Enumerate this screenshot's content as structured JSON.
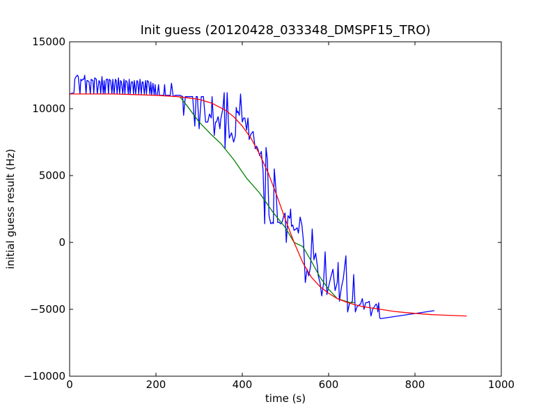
{
  "chart_data": {
    "type": "line",
    "title": "Init guess (20120428_033348_DMSPF15_TRO)",
    "xlabel": "time (s)",
    "ylabel": "initial guess result (Hz)",
    "xlim": [
      0,
      1000
    ],
    "ylim": [
      -10000,
      15000
    ],
    "xticks": [
      0,
      200,
      400,
      600,
      800,
      1000
    ],
    "yticks": [
      -10000,
      -5000,
      0,
      5000,
      10000,
      15000
    ],
    "grid": false,
    "series": [
      {
        "color": "#0000ff",
        "x": [
          0,
          10,
          12,
          15,
          18,
          20,
          24,
          26,
          28,
          30,
          33,
          35,
          38,
          40,
          42,
          45,
          48,
          50,
          54,
          56,
          58,
          62,
          64,
          68,
          70,
          72,
          75,
          78,
          80,
          82,
          85,
          88,
          90,
          92,
          95,
          98,
          100,
          103,
          106,
          108,
          110,
          113,
          116,
          118,
          120,
          123,
          126,
          128,
          130,
          133,
          136,
          138,
          140,
          143,
          146,
          148,
          150,
          153,
          156,
          158,
          160,
          163,
          166,
          168,
          170,
          173,
          176,
          178,
          180,
          183,
          186,
          188,
          190,
          193,
          196,
          198,
          200,
          203,
          206,
          208,
          210,
          215,
          218,
          220,
          222,
          230,
          233,
          236,
          240,
          245,
          248,
          250,
          256,
          262,
          264,
          268,
          270,
          280,
          285,
          290,
          293,
          296,
          300,
          305,
          310,
          315,
          318,
          320,
          324,
          328,
          330,
          335,
          338,
          340,
          344,
          348,
          350,
          355,
          358,
          360,
          365,
          368,
          370,
          375,
          380,
          384,
          386,
          388,
          390,
          393,
          396,
          400,
          403,
          406,
          410,
          413,
          416,
          420,
          425,
          430,
          433,
          436,
          440,
          444,
          448,
          452,
          455,
          458,
          462,
          466,
          470,
          472,
          474,
          478,
          482,
          486,
          488,
          490,
          493,
          496,
          499,
          502,
          506,
          510,
          512,
          514,
          517,
          520,
          524,
          527,
          530,
          534,
          538,
          542,
          546,
          550,
          554,
          558,
          562,
          566,
          570,
          574,
          576,
          580,
          584,
          588,
          592,
          596,
          600,
          605,
          610,
          615,
          620,
          622,
          625,
          628,
          630,
          634,
          640,
          644,
          648,
          652,
          655,
          658,
          662,
          666,
          670,
          674,
          678,
          682,
          686,
          690,
          694,
          698,
          702,
          706,
          710,
          712,
          714,
          716,
          718,
          720,
          845
        ],
        "y": [
          11100,
          11200,
          12200,
          12400,
          12500,
          12400,
          11100,
          12200,
          12100,
          12200,
          12200,
          12500,
          11100,
          12100,
          12100,
          12000,
          11100,
          12200,
          12100,
          11100,
          12300,
          12200,
          11100,
          12100,
          12000,
          11100,
          12400,
          11100,
          12100,
          11100,
          12200,
          12200,
          11100,
          12200,
          12100,
          11100,
          12200,
          11100,
          12200,
          12100,
          11100,
          12300,
          11100,
          12100,
          12000,
          11100,
          12200,
          11100,
          12100,
          12000,
          11100,
          12200,
          11100,
          12000,
          12000,
          11100,
          12100,
          11100,
          12100,
          12000,
          11100,
          12200,
          11100,
          12000,
          12000,
          11100,
          12100,
          11100,
          12100,
          12000,
          11100,
          12000,
          11000,
          11900,
          11000,
          11800,
          11000,
          11000,
          11800,
          11000,
          11000,
          11000,
          11000,
          11800,
          11000,
          11000,
          11000,
          11900,
          10900,
          11000,
          11000,
          11000,
          11000,
          10900,
          9500,
          10900,
          10900,
          10900,
          10900,
          8700,
          10900,
          10900,
          8500,
          10900,
          10900,
          9000,
          9000,
          9000,
          9600,
          9300,
          10900,
          8000,
          9000,
          9000,
          9400,
          8500,
          9200,
          10000,
          11200,
          7000,
          11200,
          8800,
          7800,
          8200,
          7500,
          8000,
          10100,
          9700,
          9800,
          9500,
          11100,
          9000,
          9300,
          9300,
          8400,
          9300,
          7700,
          8100,
          8300,
          7000,
          7200,
          7000,
          6500,
          6800,
          5400,
          1400,
          7100,
          6200,
          2000,
          1400,
          1500,
          1400,
          5500,
          3900,
          1500,
          1500,
          1400,
          1400,
          1600,
          2000,
          2200,
          0,
          2000,
          1800,
          2500,
          1200,
          1300,
          900,
          1000,
          1100,
          700,
          1900,
          1300,
          0,
          -3000,
          -2000,
          -2500,
          -1800,
          1000,
          -1300,
          -800,
          -1800,
          -2500,
          -3000,
          -4000,
          -3100,
          -700,
          -3900,
          -3300,
          -2600,
          -2000,
          -3600,
          -3000,
          -1500,
          -4400,
          -3700,
          -3300,
          -2700,
          -1000,
          -5200,
          -4600,
          -4500,
          -4400,
          -2400,
          -5200,
          -4800,
          -4700,
          -4600,
          -4200,
          -5000,
          -4500,
          -4500,
          -4400,
          -5500,
          -5000,
          -4800,
          -4600,
          -4700,
          -5200,
          -4500,
          -5600,
          -5700,
          -5100
        ]
      },
      {
        "color": "#008000",
        "x": [
          255,
          270,
          300,
          330,
          350,
          380,
          410,
          440,
          470,
          500,
          520,
          540,
          560,
          580,
          600,
          620,
          630,
          640,
          650,
          660
        ],
        "y": [
          10900,
          10300,
          9000,
          8000,
          7400,
          6200,
          4800,
          3700,
          2300,
          1100,
          0,
          -300,
          -1400,
          -2600,
          -3500,
          -4200,
          -4300,
          -4400,
          -4500,
          -4500
        ]
      },
      {
        "color": "#ff0000",
        "x": [
          0,
          50,
          100,
          150,
          200,
          250,
          300,
          330,
          360,
          380,
          400,
          420,
          440,
          460,
          480,
          500,
          520,
          540,
          560,
          580,
          600,
          620,
          640,
          660,
          680,
          700,
          720,
          750,
          780,
          800,
          840,
          880,
          920
        ],
        "y": [
          11100,
          11100,
          11100,
          11050,
          11000,
          10900,
          10700,
          10400,
          9900,
          9400,
          8700,
          7800,
          6600,
          5200,
          3500,
          1700,
          0,
          -1500,
          -2600,
          -3300,
          -3800,
          -4200,
          -4450,
          -4650,
          -4800,
          -4900,
          -5000,
          -5150,
          -5250,
          -5300,
          -5400,
          -5450,
          -5500
        ]
      }
    ]
  }
}
